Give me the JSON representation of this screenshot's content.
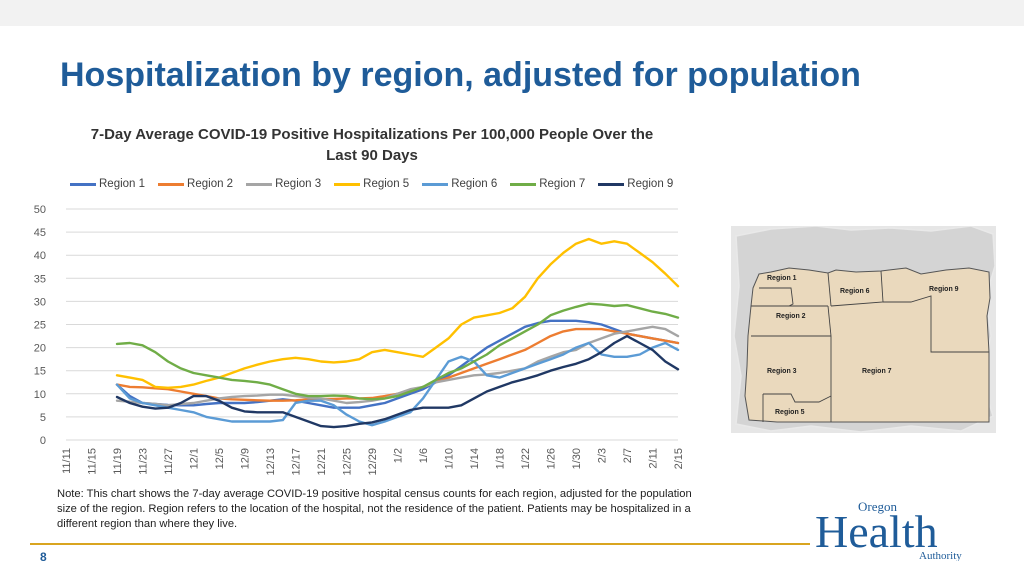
{
  "slide": {
    "title": "Hospitalization by region, adjusted for population",
    "page_number": "8",
    "note": "Note: This chart shows the 7-day average COVID-19 positive hospital census counts for each region, adjusted for the population size of the region. Region refers to the location of the hospital, not the residence of the patient. Patients may be hospitalized in a different region than where they live."
  },
  "map": {
    "labels": [
      "Region 1",
      "Region 6",
      "Region 9",
      "Region 2",
      "Region 3",
      "Region 7",
      "Region 5"
    ]
  },
  "logo": {
    "line1": "Oregon",
    "line2": "Health",
    "line3": "Authority",
    "color": "#1f5c99"
  },
  "chart_data": {
    "type": "line",
    "title": "7-Day Average COVID-19 Positive Hospitalizations Per 100,000 People Over the Last 90 Days",
    "title_line1": "7-Day Average COVID-19 Positive Hospitalizations Per 100,000 People Over the",
    "title_line2": "Last 90 Days",
    "xlabel": "",
    "ylabel": "",
    "ylim": [
      0,
      50
    ],
    "yticks": [
      0,
      5,
      10,
      15,
      20,
      25,
      30,
      35,
      40,
      45,
      50
    ],
    "grid": true,
    "legend_position": "top",
    "x": [
      "11/11",
      "11/13",
      "11/15",
      "11/17",
      "11/19",
      "11/21",
      "11/23",
      "11/25",
      "11/27",
      "11/29",
      "12/1",
      "12/3",
      "12/5",
      "12/7",
      "12/9",
      "12/11",
      "12/13",
      "12/15",
      "12/17",
      "12/19",
      "12/21",
      "12/23",
      "12/25",
      "12/27",
      "12/29",
      "12/31",
      "1/2",
      "1/4",
      "1/6",
      "1/8",
      "1/10",
      "1/12",
      "1/14",
      "1/16",
      "1/18",
      "1/20",
      "1/22",
      "1/24",
      "1/26",
      "1/28",
      "1/30",
      "2/1",
      "2/3",
      "2/5",
      "2/7",
      "2/9",
      "2/11",
      "2/13",
      "2/15"
    ],
    "xtick_labels": [
      "11/11",
      "11/15",
      "11/19",
      "11/23",
      "11/27",
      "12/1",
      "12/5",
      "12/9",
      "12/13",
      "12/17",
      "12/21",
      "12/25",
      "12/29",
      "1/2",
      "1/6",
      "1/10",
      "1/14",
      "1/18",
      "1/22",
      "1/26",
      "1/30",
      "2/3",
      "2/7",
      "2/11",
      "2/15"
    ],
    "series": [
      {
        "name": "Region 1",
        "color": "#4472c4",
        "values": [
          null,
          null,
          null,
          null,
          12,
          9.5,
          8,
          7.8,
          7.6,
          7.5,
          7.5,
          7.8,
          8,
          8,
          8,
          8.2,
          8.5,
          8.8,
          8.5,
          8,
          7.5,
          7,
          7,
          7,
          7.5,
          8,
          9,
          10,
          11,
          12.5,
          14,
          16,
          18,
          20,
          21.5,
          23,
          24.5,
          25.3,
          25.8,
          25.8,
          25.8,
          25.5,
          25,
          24,
          23,
          22.5,
          22,
          21.5,
          21
        ]
      },
      {
        "name": "Region 2",
        "color": "#ed7d31",
        "values": [
          null,
          null,
          null,
          null,
          12,
          11.5,
          11.4,
          11.2,
          11,
          10.5,
          10,
          9.5,
          9,
          8.8,
          8.7,
          8.6,
          8.5,
          8.5,
          8.6,
          8.8,
          8.9,
          8.9,
          9,
          9,
          9.1,
          9.5,
          10,
          10.5,
          11.5,
          12.5,
          13.5,
          14.5,
          15.5,
          16.5,
          17.5,
          18.5,
          19.5,
          21,
          22.5,
          23.5,
          24,
          24,
          24,
          23.5,
          23,
          22.5,
          22,
          21.5,
          21
        ]
      },
      {
        "name": "Region 3",
        "color": "#a5a5a5",
        "values": [
          null,
          null,
          null,
          null,
          8.5,
          8.3,
          8,
          7.8,
          7.5,
          7.8,
          8,
          8.5,
          9,
          9.3,
          9.5,
          9.6,
          9.8,
          9.8,
          9.5,
          9.2,
          9,
          8.5,
          8,
          8.2,
          8.5,
          9,
          10,
          11,
          11.5,
          12.5,
          13,
          13.5,
          14,
          14.2,
          14.5,
          15,
          15.5,
          17,
          18,
          19,
          19.5,
          21,
          22,
          23,
          23.5,
          24,
          24.5,
          24,
          22.5
        ]
      },
      {
        "name": "Region 5",
        "color": "#ffc000",
        "values": [
          null,
          null,
          null,
          null,
          14,
          13.5,
          13,
          11.5,
          11.3,
          11.5,
          12,
          12.8,
          13.5,
          14.5,
          15.5,
          16.3,
          17,
          17.5,
          17.8,
          17.5,
          17,
          16.8,
          17,
          17.5,
          19,
          19.5,
          19,
          18.5,
          18,
          20,
          22,
          25,
          26.5,
          27,
          27.5,
          28.5,
          31,
          35,
          38,
          40.5,
          42.5,
          43.5,
          42.5,
          43,
          42.5,
          40.5,
          38.5,
          36,
          33.3
        ]
      },
      {
        "name": "Region 6",
        "color": "#5b9bd5",
        "values": [
          null,
          null,
          null,
          null,
          12,
          9,
          8,
          7.5,
          7,
          6.5,
          6,
          5,
          4.5,
          4,
          4,
          4,
          4,
          4.3,
          8,
          8.5,
          8.5,
          7.5,
          5.5,
          4,
          3.2,
          4,
          5,
          6,
          9,
          13,
          17,
          18,
          17,
          14,
          13.5,
          14.5,
          15.5,
          16.5,
          17.5,
          18.5,
          20,
          21,
          18.5,
          18,
          18,
          18.5,
          20,
          21,
          19.5
        ]
      },
      {
        "name": "Region 7",
        "color": "#70ad47",
        "values": [
          null,
          null,
          null,
          null,
          20.8,
          21,
          20.5,
          19,
          17,
          15.5,
          14.5,
          14,
          13.5,
          13,
          12.8,
          12.5,
          12,
          11,
          10,
          9.5,
          9.5,
          9.6,
          9.5,
          9,
          8.8,
          9,
          9.5,
          10.5,
          11.5,
          13,
          14.5,
          15.5,
          17,
          18.5,
          20.5,
          22,
          23.5,
          25,
          27,
          28,
          28.8,
          29.5,
          29.3,
          29,
          29.2,
          28.5,
          27.8,
          27.3,
          26.5
        ]
      },
      {
        "name": "Region 9",
        "color": "#203864",
        "values": [
          null,
          null,
          null,
          null,
          9.3,
          8,
          7.2,
          6.8,
          7,
          8,
          9.5,
          9.5,
          8.5,
          7,
          6.2,
          6,
          6,
          6,
          5,
          4,
          3,
          2.8,
          3,
          3.5,
          3.8,
          4.5,
          5.5,
          6.5,
          7,
          7,
          7,
          7.5,
          9,
          10.5,
          11.5,
          12.5,
          13.2,
          14,
          15,
          15.8,
          16.5,
          17.5,
          19,
          21,
          22.5,
          21,
          19.5,
          17,
          15.3
        ]
      }
    ]
  }
}
